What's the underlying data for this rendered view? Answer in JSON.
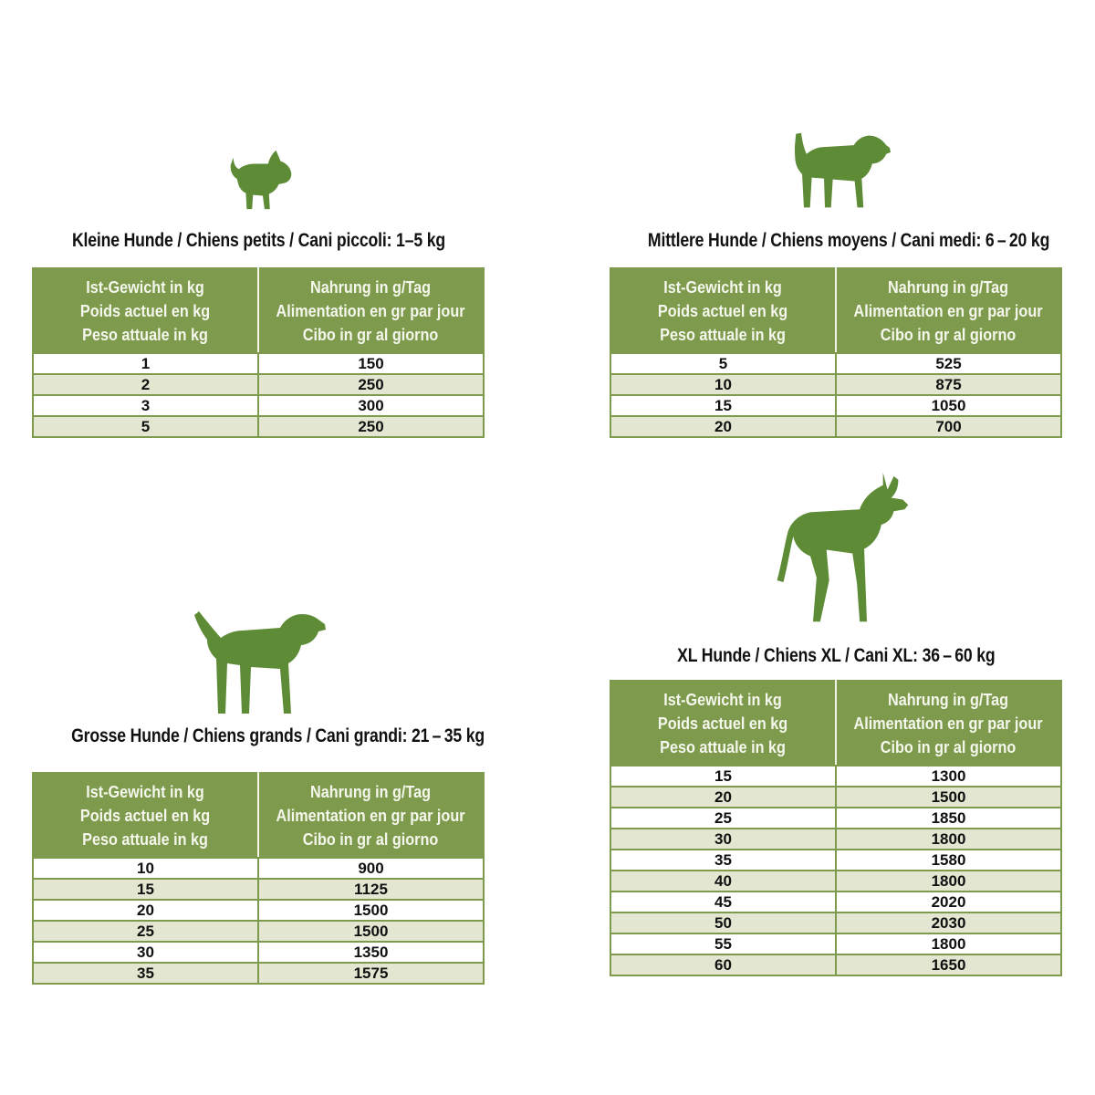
{
  "colors": {
    "dog_green": "#5d8b36",
    "header_green": "#7e9a4d",
    "border_green": "#7e9a4d",
    "header_divider": "#f2f4e7",
    "row_alt": "#e3e6d1",
    "header_text": "#f5f7ec",
    "title_text": "#111111",
    "cell_text": "#111111"
  },
  "column_headers": {
    "weight_lines": [
      "Ist-Gewicht in kg",
      "Poids actuel en kg",
      "Peso attuale in kg"
    ],
    "food_lines": [
      "Nahrung in g/Tag",
      "Alimentation en gr par jour",
      "Cibo in gr al giorno"
    ]
  },
  "tables": [
    {
      "id": "small",
      "icon": "small-dog-icon",
      "title": "Kleine Hunde / Chiens petits / Cani piccoli: 1–5 kg",
      "rows": [
        [
          "1",
          "150"
        ],
        [
          "2",
          "250"
        ],
        [
          "3",
          "300"
        ],
        [
          "5",
          "250"
        ]
      ]
    },
    {
      "id": "medium",
      "icon": "medium-dog-icon",
      "title": "Mittlere Hunde / Chiens moyens / Cani medi: 6 – 20 kg",
      "rows": [
        [
          "5",
          "525"
        ],
        [
          "10",
          "875"
        ],
        [
          "15",
          "1050"
        ],
        [
          "20",
          "700"
        ]
      ]
    },
    {
      "id": "large",
      "icon": "large-dog-icon",
      "title": "Grosse Hunde / Chiens grands / Cani grandi: 21 – 35 kg",
      "rows": [
        [
          "10",
          "900"
        ],
        [
          "15",
          "1125"
        ],
        [
          "20",
          "1500"
        ],
        [
          "25",
          "1500"
        ],
        [
          "30",
          "1350"
        ],
        [
          "35",
          "1575"
        ]
      ]
    },
    {
      "id": "xl",
      "icon": "xl-dog-icon",
      "title": "XL Hunde / Chiens XL / Cani XL: 36 – 60 kg",
      "rows": [
        [
          "15",
          "1300"
        ],
        [
          "20",
          "1500"
        ],
        [
          "25",
          "1850"
        ],
        [
          "30",
          "1800"
        ],
        [
          "35",
          "1580"
        ],
        [
          "40",
          "1800"
        ],
        [
          "45",
          "2020"
        ],
        [
          "50",
          "2030"
        ],
        [
          "55",
          "1800"
        ],
        [
          "60",
          "1650"
        ]
      ]
    }
  ]
}
